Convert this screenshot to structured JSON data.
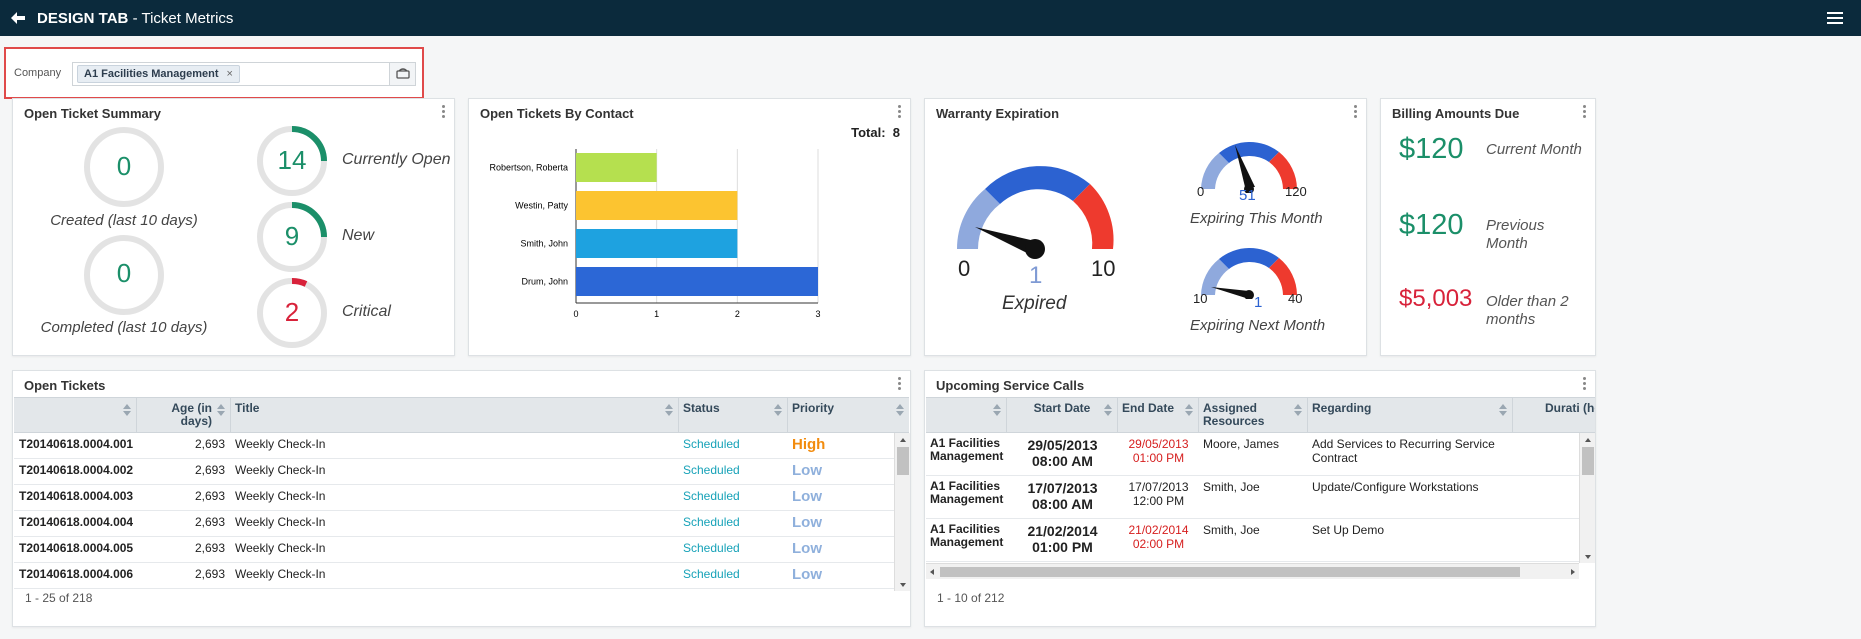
{
  "header": {
    "tab_name": "DESIGN TAB",
    "separator": " - ",
    "page_name": "Ticket Metrics"
  },
  "filter": {
    "label": "Company",
    "chip": "A1 Facilities Management",
    "chip_remove": "×"
  },
  "summary": {
    "title": "Open Ticket Summary",
    "created": {
      "value": "0",
      "label": "Created (last 10 days)"
    },
    "completed": {
      "value": "0",
      "label": "Completed (last 10 days)"
    },
    "currently_open": {
      "value": "14",
      "label": "Currently Open"
    },
    "new": {
      "value": "9",
      "label": "New"
    },
    "critical": {
      "value": "2",
      "label": "Critical"
    }
  },
  "by_contact": {
    "title": "Open Tickets By Contact",
    "total_label": "Total:",
    "total_value": "8"
  },
  "chart_data": {
    "type": "bar",
    "orientation": "horizontal",
    "categories": [
      "Robertson, Roberta",
      "Westin, Patty",
      "Smith, John",
      "Drum, John"
    ],
    "values": [
      1,
      2,
      2,
      3
    ],
    "colors": [
      "#b5e04f",
      "#fcc430",
      "#1ea2e0",
      "#2c67d6"
    ],
    "xlim": [
      0,
      3
    ],
    "xticks": [
      "0",
      "1",
      "2",
      "3"
    ],
    "grid": true
  },
  "warranty": {
    "title": "Warranty Expiration",
    "main": {
      "min": "0",
      "max": "10",
      "value": "1",
      "label": "Expired"
    },
    "this_month": {
      "min": "0",
      "max": "120",
      "value": "51",
      "label": "Expiring This Month"
    },
    "next_month": {
      "min": "10",
      "max": "40",
      "value": "1",
      "label": "Expiring Next Month"
    },
    "colors": {
      "low": "#8fa9dd",
      "mid": "#2c62d1",
      "high": "#ee3a2e"
    }
  },
  "billing": {
    "title": "Billing Amounts Due",
    "items": [
      {
        "amount": "$120",
        "label": "Current Month",
        "color": "#1b8f69"
      },
      {
        "amount": "$120",
        "label": "Previous Month",
        "color": "#1b8f69"
      },
      {
        "amount": "$5,003",
        "label": "Older than 2 months",
        "color": "#d8223a"
      }
    ]
  },
  "open_tickets": {
    "title": "Open Tickets",
    "headers": [
      "",
      "Age (in days)",
      "Title",
      "Status",
      "Priority"
    ],
    "rows": [
      {
        "id": "T20140618.0004.001",
        "age": "2,693",
        "title": "Weekly Check-In",
        "status": "Scheduled",
        "priority": "High"
      },
      {
        "id": "T20140618.0004.002",
        "age": "2,693",
        "title": "Weekly Check-In",
        "status": "Scheduled",
        "priority": "Low"
      },
      {
        "id": "T20140618.0004.003",
        "age": "2,693",
        "title": "Weekly Check-In",
        "status": "Scheduled",
        "priority": "Low"
      },
      {
        "id": "T20140618.0004.004",
        "age": "2,693",
        "title": "Weekly Check-In",
        "status": "Scheduled",
        "priority": "Low"
      },
      {
        "id": "T20140618.0004.005",
        "age": "2,693",
        "title": "Weekly Check-In",
        "status": "Scheduled",
        "priority": "Low"
      },
      {
        "id": "T20140618.0004.006",
        "age": "2,693",
        "title": "Weekly Check-In",
        "status": "Scheduled",
        "priority": "Low"
      }
    ],
    "pager": "1 - 25 of 218",
    "colors": {
      "status": "#17a2b8",
      "high": "#f28c0f",
      "low": "#8fb0dc"
    }
  },
  "service_calls": {
    "title": "Upcoming Service Calls",
    "headers": [
      "",
      "Start Date",
      "End Date",
      "Assigned Resources",
      "Regarding",
      "Durati (hou"
    ],
    "rows": [
      {
        "company": "A1 Facilities Management",
        "start_date": "29/05/2013",
        "start_time": "08:00 AM",
        "end_date": "29/05/2013",
        "end_time": "01:00 PM",
        "end_red": true,
        "resource": "Moore, James",
        "regarding": "Add Services to Recurring Service Contract"
      },
      {
        "company": "A1 Facilities Management",
        "start_date": "17/07/2013",
        "start_time": "08:00 AM",
        "end_date": "17/07/2013",
        "end_time": "12:00 PM",
        "end_red": false,
        "resource": "Smith, Joe",
        "regarding": "Update/Configure Workstations"
      },
      {
        "company": "A1 Facilities Management",
        "start_date": "21/02/2014",
        "start_time": "01:00 PM",
        "end_date": "21/02/2014",
        "end_time": "02:00 PM",
        "end_red": true,
        "resource": "Smith, Joe",
        "regarding": "Set Up Demo"
      }
    ],
    "pager": "1 - 10 of 212"
  }
}
